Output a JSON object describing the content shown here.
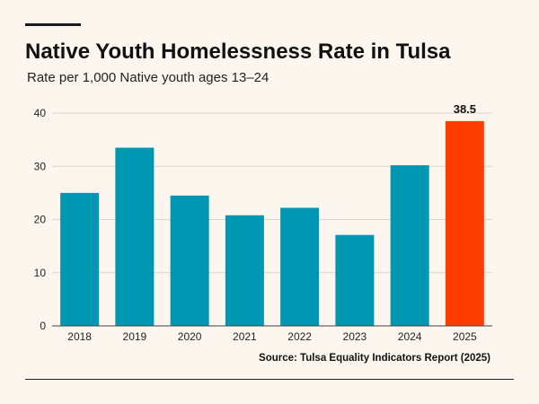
{
  "title": "Native Youth Homelessness Rate in Tulsa",
  "subtitle": "Rate per 1,000 Native youth ages 13–24",
  "source": "Source: Tulsa Equality Indicators Report (2025)",
  "colors": {
    "bar": "#0097b2",
    "highlight": "#ff3d00",
    "grid": "#d9d4cd",
    "background": "#fdf6ee"
  },
  "chart_data": {
    "type": "bar",
    "categories": [
      "2018",
      "2019",
      "2020",
      "2021",
      "2022",
      "2023",
      "2024",
      "2025"
    ],
    "values": [
      25.0,
      33.5,
      24.5,
      20.8,
      22.2,
      17.1,
      30.2,
      38.5
    ],
    "highlight_category": "2025",
    "highlight_label": "38.5",
    "title": "Native Youth Homelessness Rate in Tulsa",
    "xlabel": "",
    "ylabel": "",
    "ylim": [
      0,
      40
    ],
    "yticks": [
      0,
      10,
      20,
      30,
      40
    ],
    "grid": true,
    "legend": "none"
  }
}
